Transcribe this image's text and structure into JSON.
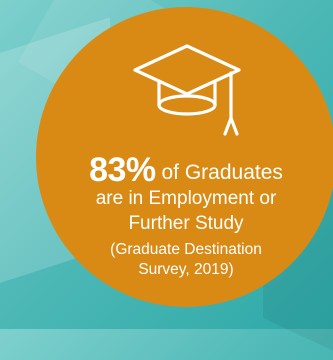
{
  "stat": {
    "value": "83%",
    "text_line1": "of Graduates",
    "text_line2": "are in Employment or",
    "text_line3": "Further Study"
  },
  "source": {
    "line1": "(Graduate Destination",
    "line2": "Survey, 2019)"
  },
  "icon": "graduation-cap-icon",
  "colors": {
    "badge": "#d98a14",
    "background": "#4fb9b7",
    "text": "#ffffff"
  }
}
